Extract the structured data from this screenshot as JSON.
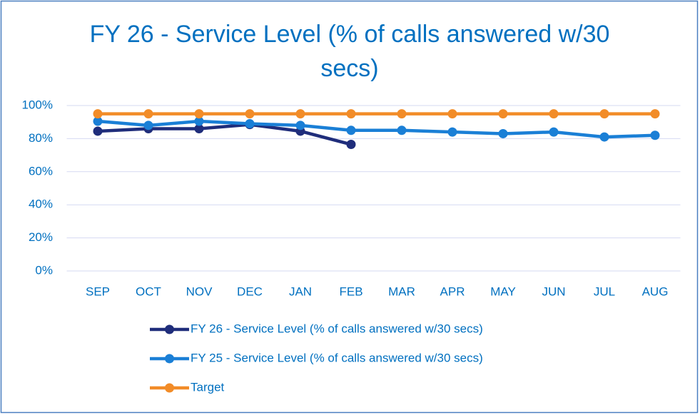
{
  "chart_data": {
    "type": "line",
    "title": "FY 26 - Service Level (% of calls answered w/30 secs)",
    "categories": [
      "SEP",
      "OCT",
      "NOV",
      "DEC",
      "JAN",
      "FEB",
      "MAR",
      "APR",
      "MAY",
      "JUN",
      "JUL",
      "AUG"
    ],
    "series": [
      {
        "name": "FY 26 - Service Level (% of calls answered w/30 secs)",
        "color": "#1f2d7b",
        "values": [
          84.5,
          86,
          86,
          88.5,
          84.5,
          76.5,
          null,
          null,
          null,
          null,
          null,
          null
        ]
      },
      {
        "name": "FY 25 - Service Level (% of calls answered w/30 secs)",
        "color": "#1a7fd6",
        "values": [
          90.5,
          88,
          90.5,
          89,
          88,
          85,
          85,
          84,
          83,
          84,
          81,
          82
        ]
      },
      {
        "name": "Target",
        "color": "#f28c28",
        "values": [
          95,
          95,
          95,
          95,
          95,
          95,
          95,
          95,
          95,
          95,
          95,
          95
        ]
      }
    ],
    "ylim": [
      0,
      100
    ],
    "yticks": [
      {
        "value": 0,
        "label": "0%"
      },
      {
        "value": 20,
        "label": "20%"
      },
      {
        "value": 40,
        "label": "40%"
      },
      {
        "value": 60,
        "label": "60%"
      },
      {
        "value": 80,
        "label": "80%"
      },
      {
        "value": 100,
        "label": "100%"
      }
    ],
    "grid": true,
    "legend": "bottom"
  }
}
